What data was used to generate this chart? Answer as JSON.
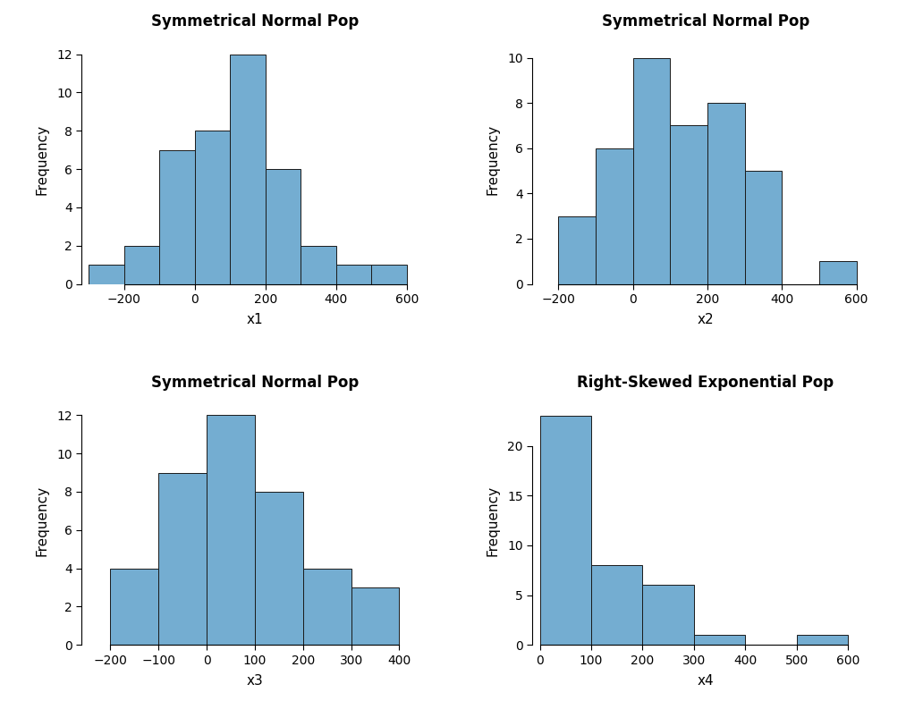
{
  "plots": [
    {
      "title": "Symmetrical Normal Pop",
      "xlabel": "x1",
      "ylabel": "Frequency",
      "bar_color": "#74add1",
      "edge_color": "#1a1a1a",
      "bins_left": [
        -300,
        -200,
        -100,
        0,
        100,
        200,
        300,
        400,
        500
      ],
      "bin_width": 100,
      "heights": [
        1,
        2,
        7,
        8,
        12,
        6,
        2,
        1,
        1
      ],
      "xlim": [
        -320,
        660
      ],
      "xticks": [
        -200,
        0,
        200,
        400,
        600
      ],
      "ylim": [
        0,
        13
      ],
      "yticks": [
        0,
        2,
        4,
        6,
        8,
        10,
        12
      ]
    },
    {
      "title": "Symmetrical Normal Pop",
      "xlabel": "x2",
      "ylabel": "Frequency",
      "bar_color": "#74add1",
      "edge_color": "#1a1a1a",
      "bins_left": [
        -200,
        -100,
        0,
        100,
        200,
        300,
        500
      ],
      "bin_width": 100,
      "heights": [
        3,
        6,
        10,
        7,
        8,
        5,
        1
      ],
      "xlim": [
        -270,
        660
      ],
      "xticks": [
        -200,
        0,
        200,
        400,
        600
      ],
      "ylim": [
        0,
        11
      ],
      "yticks": [
        0,
        2,
        4,
        6,
        8,
        10
      ]
    },
    {
      "title": "Symmetrical Normal Pop",
      "xlabel": "x3",
      "ylabel": "Frequency",
      "bar_color": "#74add1",
      "edge_color": "#1a1a1a",
      "bins_left": [
        -200,
        -100,
        0,
        100,
        200,
        300
      ],
      "bin_width": 100,
      "heights": [
        4,
        9,
        12,
        8,
        4,
        3
      ],
      "xlim": [
        -260,
        460
      ],
      "xticks": [
        -200,
        -100,
        0,
        100,
        200,
        300,
        400
      ],
      "ylim": [
        0,
        13
      ],
      "yticks": [
        0,
        2,
        4,
        6,
        8,
        10,
        12
      ]
    },
    {
      "title": "Right-Skewed Exponential Pop",
      "xlabel": "x4",
      "ylabel": "Frequency",
      "bar_color": "#74add1",
      "edge_color": "#1a1a1a",
      "bins_left": [
        0,
        100,
        200,
        300,
        400,
        500
      ],
      "bin_width": 100,
      "heights": [
        23,
        8,
        6,
        1,
        0,
        1
      ],
      "xlim": [
        -15,
        660
      ],
      "xticks": [
        0,
        100,
        200,
        300,
        400,
        500,
        600
      ],
      "ylim": [
        0,
        25
      ],
      "yticks": [
        0,
        5,
        10,
        15,
        20
      ]
    }
  ],
  "title_fontsize": 12,
  "label_fontsize": 11,
  "tick_fontsize": 10,
  "title_fontweight": "bold",
  "background_color": "#ffffff",
  "fig_width": 10.13,
  "fig_height": 7.84
}
